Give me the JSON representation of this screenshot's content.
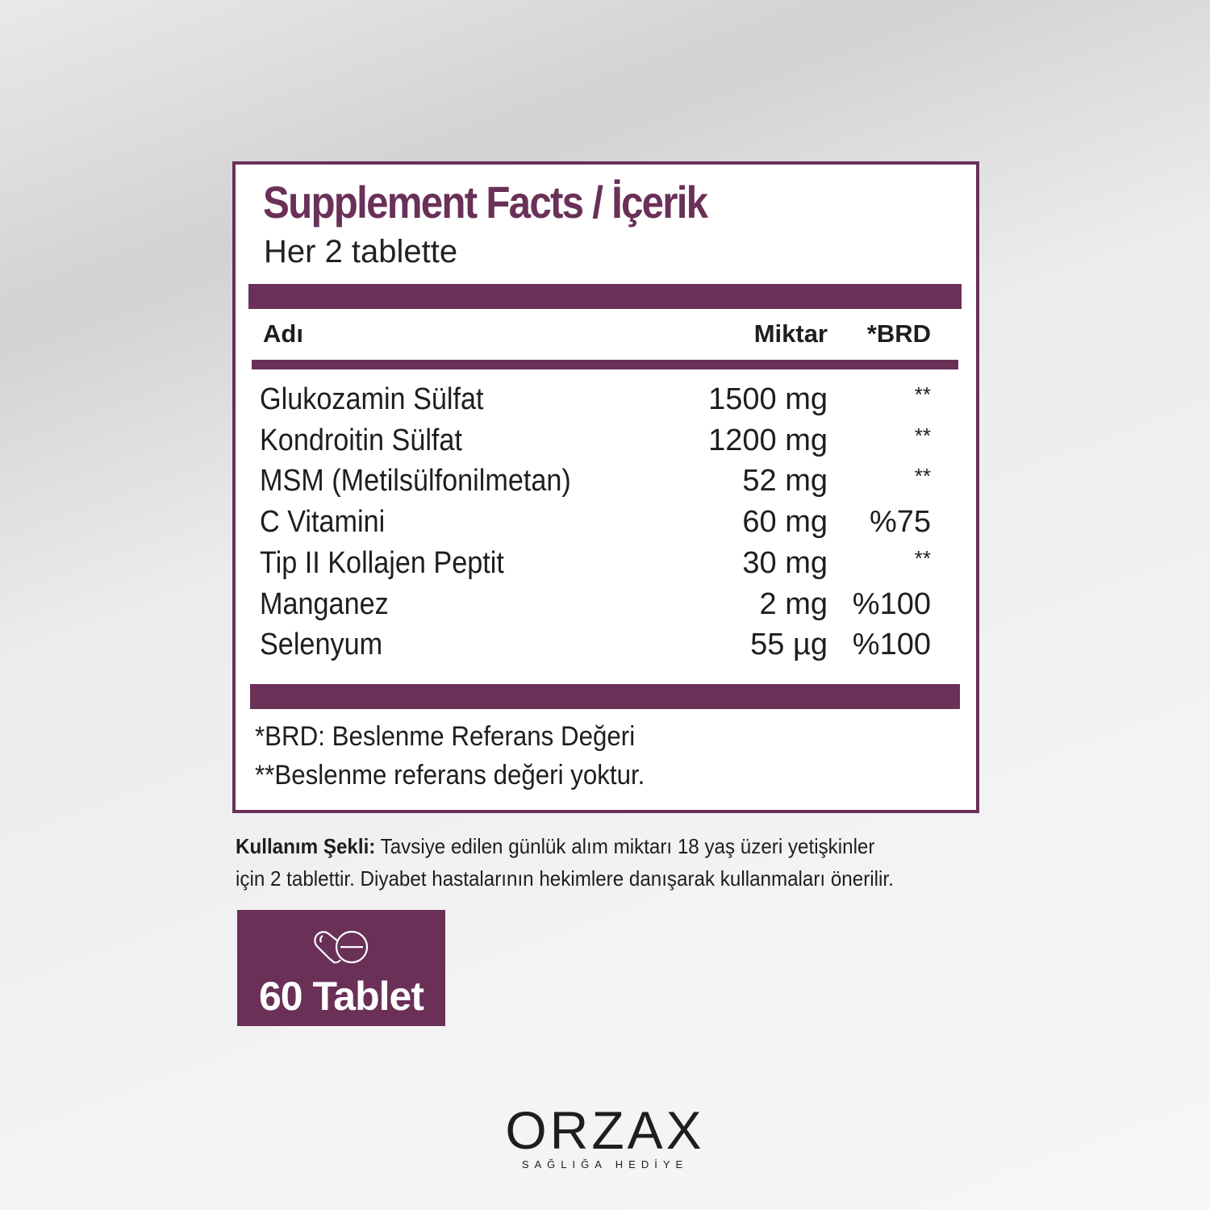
{
  "panel": {
    "title": "Supplement Facts / İçerik",
    "subtitle": "Her 2 tablette",
    "columns": {
      "name": "Adı",
      "amount": "Miktar",
      "nrv": "*BRD"
    },
    "rows": [
      {
        "name": "Glukozamin Sülfat",
        "amount": "1500 mg",
        "nrv": "**"
      },
      {
        "name": "Kondroitin Sülfat",
        "amount": "1200 mg",
        "nrv": "**"
      },
      {
        "name": "MSM (Metilsülfonilmetan)",
        "amount": "52 mg",
        "nrv": "**"
      },
      {
        "name": "C Vitamini",
        "amount": "60 mg",
        "nrv": "%75"
      },
      {
        "name": "Tip II Kollajen Peptit",
        "amount": "30 mg",
        "nrv": "**"
      },
      {
        "name": "Manganez",
        "amount": "2 mg",
        "nrv": "%100"
      },
      {
        "name": "Selenyum",
        "amount": "55 µg",
        "nrv": "%100"
      }
    ],
    "footnotes": [
      "*BRD: Beslenme Referans Değeri",
      "**Beslenme referans değeri yoktur."
    ]
  },
  "usage": {
    "label": "Kullanım Şekli:",
    "line1": " Tavsiye edilen günlük alım miktarı 18 yaş üzeri yetişkinler",
    "line2": "için 2 tablettir. Diyabet hastalarının hekimlere danışarak kullanmaları önerilir."
  },
  "badge": {
    "icon": "pill-tablet-icon",
    "label": "60 Tablet"
  },
  "brand": {
    "name": "ORZAX",
    "tagline": "SAĞLIĞA HEDİYE"
  },
  "colors": {
    "accent": "#6a3058"
  }
}
